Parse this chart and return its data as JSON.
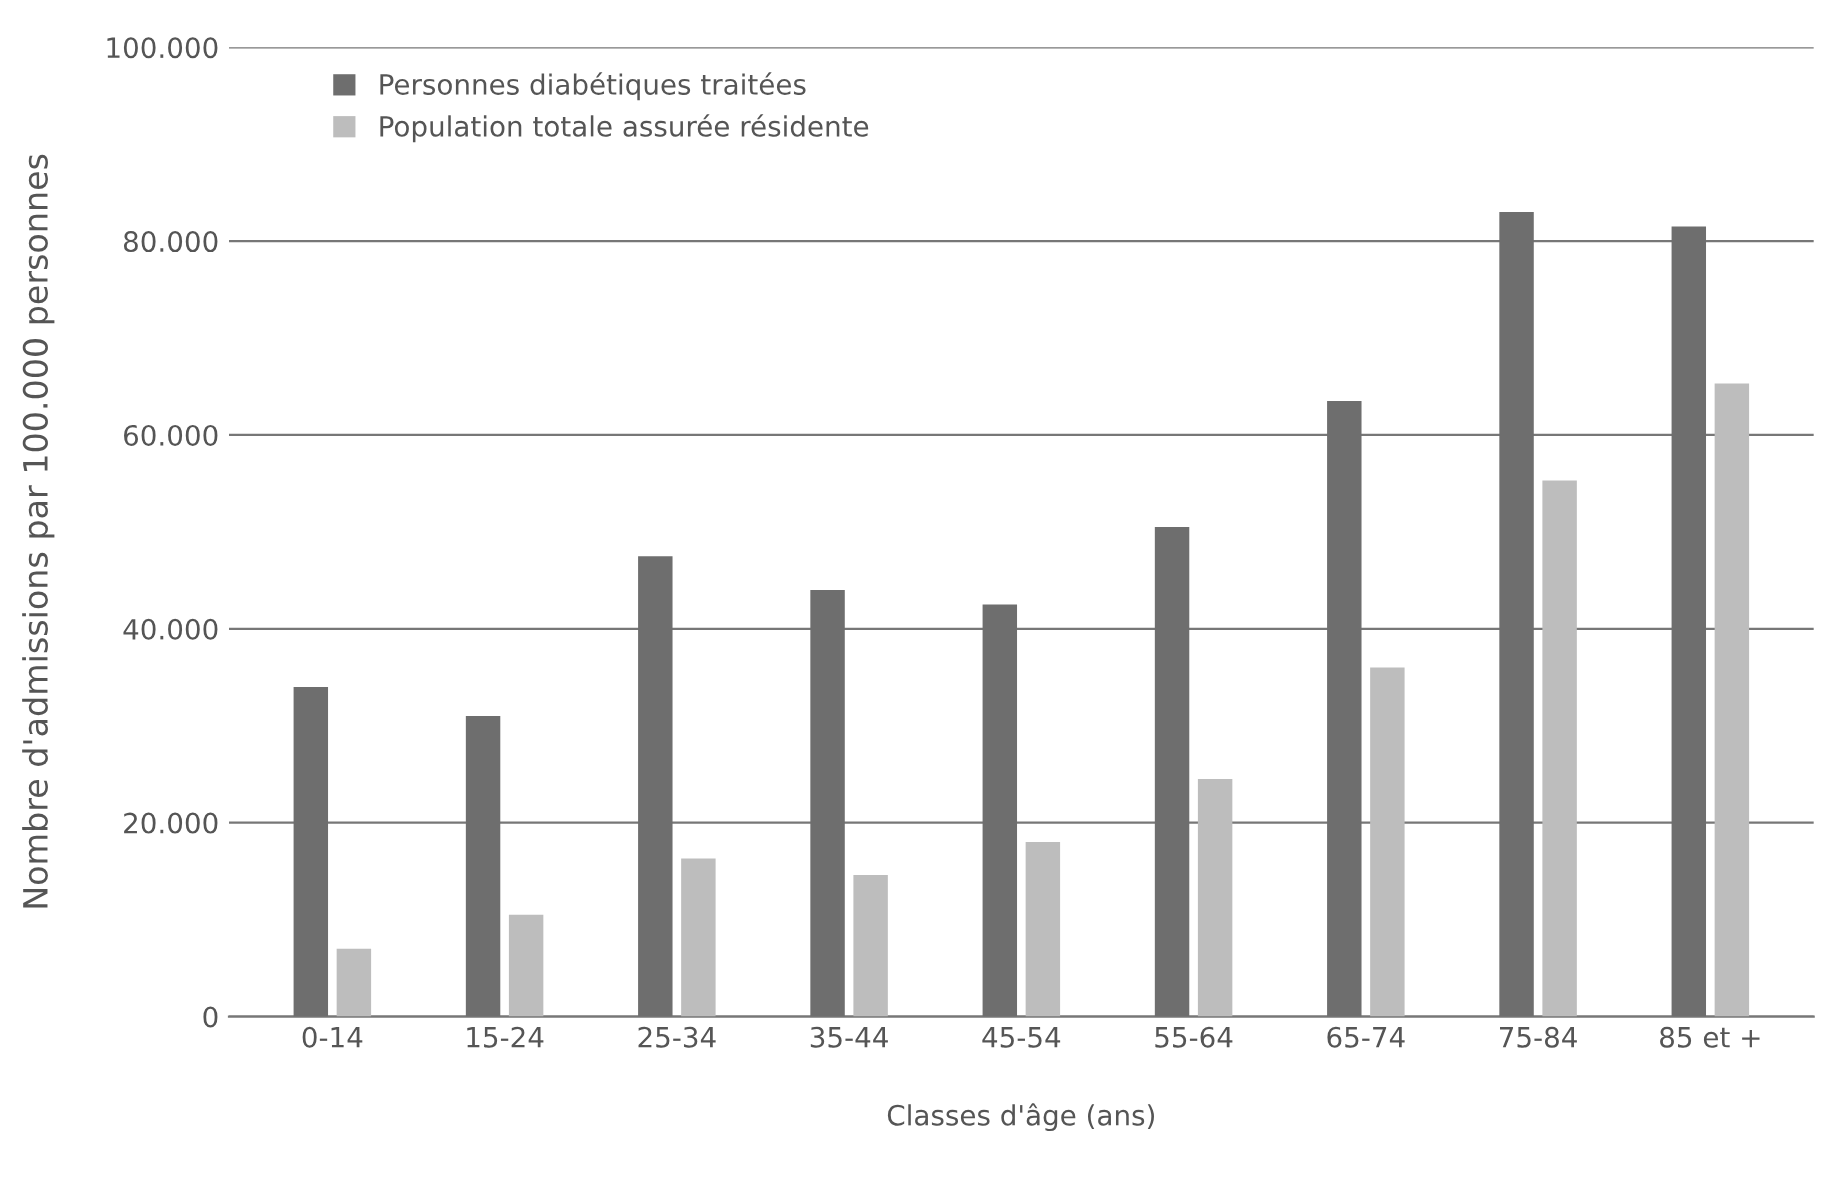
{
  "chart_data": {
    "type": "bar",
    "xlabel": "Classes d'âge (ans)",
    "ylabel": "Nombre d'admissions par 100.000 personnes",
    "categories": [
      "0-14",
      "15-24",
      "25-34",
      "35-44",
      "45-54",
      "55-64",
      "65-74",
      "75-84",
      "85 et +"
    ],
    "series": [
      {
        "name": "Personnes diabétiques traitées",
        "color": "#6e6e6e",
        "values": [
          34000,
          31000,
          47500,
          44000,
          42500,
          50500,
          63500,
          83000,
          81500
        ]
      },
      {
        "name": "Population totale assurée résidente",
        "color": "#bdbdbd",
        "values": [
          7000,
          10500,
          16300,
          14600,
          18000,
          24500,
          36000,
          55300,
          65300
        ]
      }
    ],
    "ylim": [
      0,
      100000
    ],
    "yticks": [
      {
        "value": 0,
        "label": "0"
      },
      {
        "value": 20000,
        "label": "20.000"
      },
      {
        "value": 40000,
        "label": "40.000"
      },
      {
        "value": 60000,
        "label": "60.000"
      },
      {
        "value": 80000,
        "label": "80.000"
      },
      {
        "value": 100000,
        "label": "100.000"
      }
    ],
    "grid": "y",
    "legend": "top left"
  }
}
